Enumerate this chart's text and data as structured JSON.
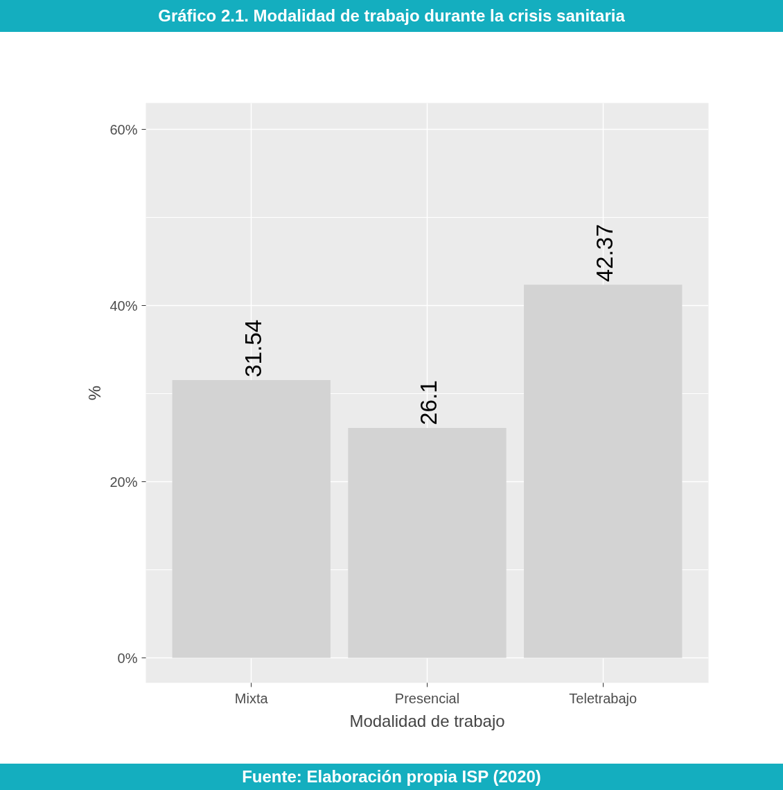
{
  "chart_data": {
    "type": "bar",
    "title": "Gráfico 2.1. Modalidad de trabajo durante la crisis sanitaria",
    "xlabel": "Modalidad de trabajo",
    "ylabel": "%",
    "categories": [
      "Mixta",
      "Presencial",
      "Teletrabajo"
    ],
    "values": [
      31.54,
      26.1,
      42.37
    ],
    "color": "#d3d3d3",
    "data_labels": true,
    "ylim": [
      -2.83,
      63.0
    ],
    "yticks": [
      {
        "value": 0,
        "label": "0%"
      },
      {
        "value": 20,
        "label": "20%"
      },
      {
        "value": 40,
        "label": "40%"
      },
      {
        "value": 60,
        "label": "60%"
      }
    ],
    "grid": true,
    "annotations": [
      "Fuente: Elaboración propia ISP (2020)"
    ]
  }
}
